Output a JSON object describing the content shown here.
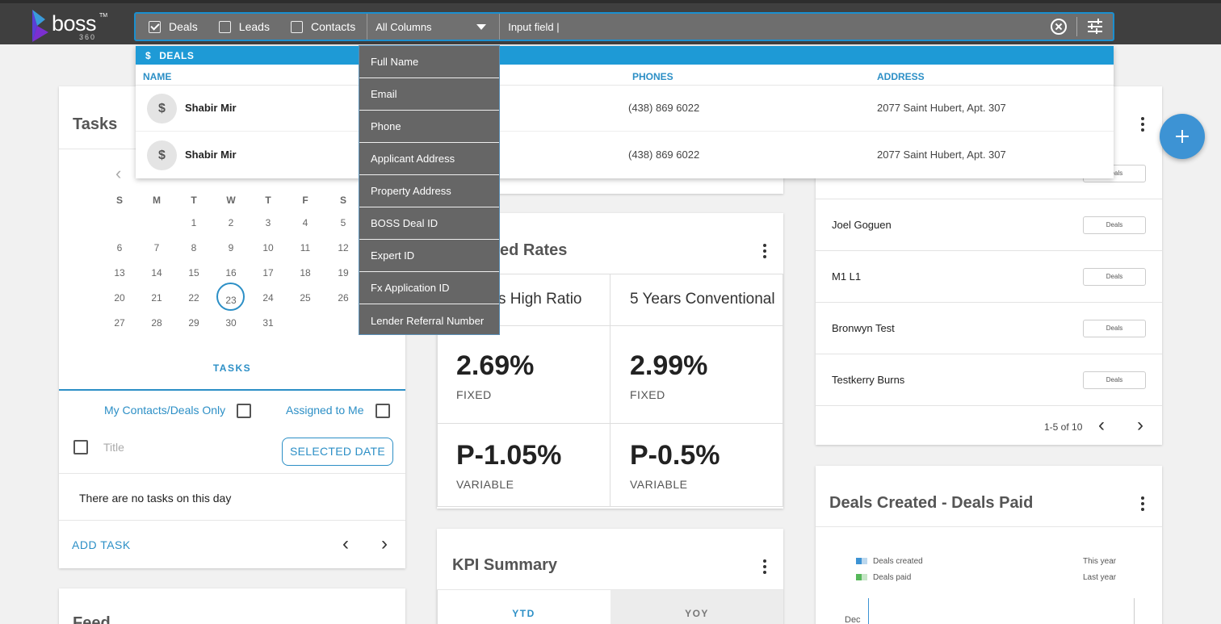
{
  "brand": {
    "name": "boss",
    "tm": "TM",
    "sub": "360"
  },
  "search": {
    "filters": [
      {
        "label": "Deals",
        "checked": true
      },
      {
        "label": "Leads",
        "checked": false
      },
      {
        "label": "Contacts",
        "checked": false
      }
    ],
    "column_select": "All Columns",
    "input_value": "Input field |",
    "column_options": [
      "Full Name",
      "Email",
      "Phone",
      "Applicant Address",
      "Property Address",
      "BOSS Deal ID",
      "Expert ID",
      "Fx Application ID",
      "Lender Referral Number"
    ]
  },
  "results": {
    "section": "DEALS",
    "section_icon": "$",
    "headers": {
      "name": "NAME",
      "phones": "PHONES",
      "address": "ADDRESS"
    },
    "rows": [
      {
        "avatar": "$",
        "name": "Shabir Mir",
        "phone": "(438) 869 6022",
        "address": "2077 Saint Hubert, Apt. 307"
      },
      {
        "avatar": "$",
        "name": "Shabir Mir",
        "phone": "(438) 869 6022",
        "address": "2077 Saint Hubert, Apt. 307"
      }
    ]
  },
  "tasks": {
    "title": "Tasks",
    "prev": "‹",
    "weekdays": [
      "S",
      "M",
      "T",
      "W",
      "T",
      "F",
      "S"
    ],
    "weeks": [
      [
        "",
        "",
        "1",
        "2",
        "3",
        "4",
        "5"
      ],
      [
        "6",
        "7",
        "8",
        "9",
        "10",
        "11",
        "12"
      ],
      [
        "13",
        "14",
        "15",
        "16",
        "17",
        "18",
        "19"
      ],
      [
        "20",
        "21",
        "22",
        "23",
        "24",
        "25",
        "26"
      ],
      [
        "27",
        "28",
        "29",
        "30",
        "31",
        "",
        ""
      ]
    ],
    "today": "23",
    "tab": "TASKS",
    "my_contacts": "My Contacts/Deals Only",
    "assigned": "Assigned to Me",
    "title_placeholder": "Title",
    "selected_date": "SELECTED DATE",
    "empty": "There are no tasks on this day",
    "add": "ADD TASK",
    "prev_btn": "‹",
    "next_btn": "›"
  },
  "feed": {
    "title": "Feed"
  },
  "rates": {
    "title": "ed Rates",
    "cols": [
      {
        "header": "s High Ratio",
        "fixed": "2.69%",
        "fixed_label": "FIXED",
        "variable": "P-1.05%",
        "variable_label": "VARIABLE"
      },
      {
        "header": "5 Years Conventional",
        "fixed": "2.99%",
        "fixed_label": "FIXED",
        "variable": "P-0.5%",
        "variable_label": "VARIABLE"
      }
    ]
  },
  "kpi": {
    "title": "KPI Summary",
    "tabs": [
      "YTD",
      "YOY"
    ]
  },
  "right_list": {
    "first_badge": "Deals",
    "rows": [
      {
        "name": "Joel Goguen",
        "badge": "Deals"
      },
      {
        "name": "M1 L1",
        "badge": "Deals"
      },
      {
        "name": "Bronwyn Test",
        "badge": "Deals"
      },
      {
        "name": "Testkerry Burns",
        "badge": "Deals"
      }
    ],
    "pagination": "1-5 of 10"
  },
  "deals_chart": {
    "title": "Deals Created - Deals Paid",
    "legend": [
      {
        "label": "Deals created",
        "color": "#3d93d4",
        "period": "This year"
      },
      {
        "label": "Deals paid",
        "color": "#56b85a",
        "period": "Last year"
      }
    ],
    "y_first": "Dec"
  },
  "colors": {
    "accent": "#1e9ad6",
    "topbar": "#3f3f3f"
  }
}
